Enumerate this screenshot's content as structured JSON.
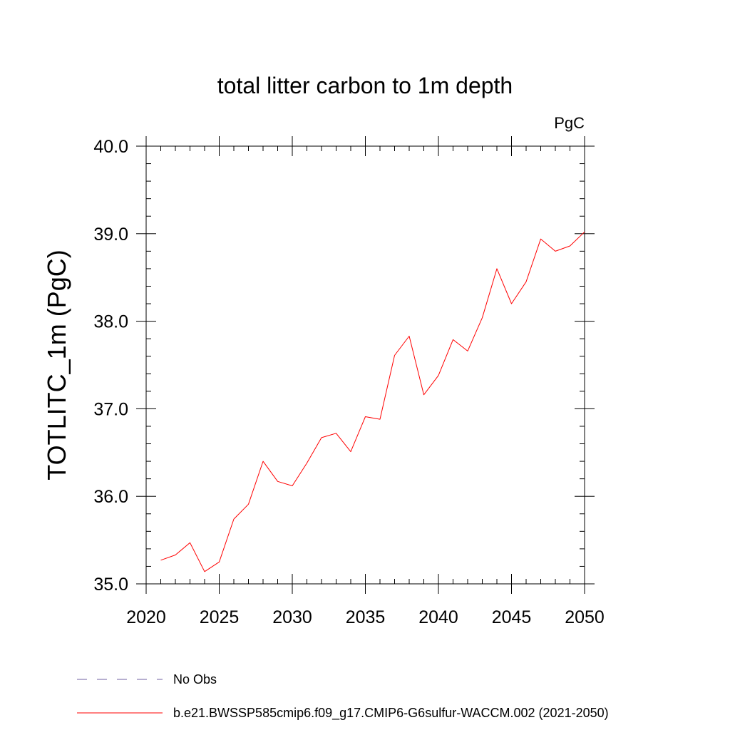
{
  "chart_data": {
    "type": "line",
    "title": "total litter carbon to 1m depth",
    "units": "PgC",
    "ylabel": "TOTLITC_1m  (PgC)",
    "xlabel": "",
    "xlim": [
      2020,
      2050
    ],
    "ylim": [
      35.0,
      40.0
    ],
    "x_ticks": [
      2020,
      2025,
      2030,
      2035,
      2040,
      2045,
      2050
    ],
    "x_tick_labels": [
      "2020",
      "2025",
      "2030",
      "2035",
      "2040",
      "2045",
      "2050"
    ],
    "y_ticks": [
      35.0,
      36.0,
      37.0,
      38.0,
      39.0,
      40.0
    ],
    "y_tick_labels": [
      "35.0",
      "36.0",
      "37.0",
      "38.0",
      "39.0",
      "40.0"
    ],
    "legend_position": "bottom-left",
    "series": [
      {
        "name": "b.e21.BWSSP585cmip6.f09_g17.CMIP6-G6sulfur-WACCM.002 (2021-2050)",
        "color": "#ff0000",
        "x": [
          2021,
          2022,
          2023,
          2024,
          2025,
          2026,
          2027,
          2028,
          2029,
          2030,
          2031,
          2032,
          2033,
          2034,
          2035,
          2036,
          2037,
          2038,
          2039,
          2040,
          2041,
          2042,
          2043,
          2044,
          2045,
          2046,
          2047,
          2048,
          2049,
          2050
        ],
        "values": [
          35.27,
          35.33,
          35.47,
          35.14,
          35.25,
          35.74,
          35.91,
          36.4,
          36.17,
          36.12,
          36.38,
          36.67,
          36.72,
          36.51,
          36.91,
          36.88,
          37.61,
          37.83,
          37.16,
          37.38,
          37.79,
          37.66,
          38.04,
          38.6,
          38.2,
          38.45,
          38.94,
          38.8,
          38.86,
          39.02
        ]
      }
    ],
    "legend": [
      {
        "label": "No Obs",
        "style": "dashed",
        "color": "#6f5fa0"
      },
      {
        "label": "b.e21.BWSSP585cmip6.f09_g17.CMIP6-G6sulfur-WACCM.002 (2021-2050)",
        "style": "solid",
        "color": "#ff0000"
      }
    ]
  }
}
